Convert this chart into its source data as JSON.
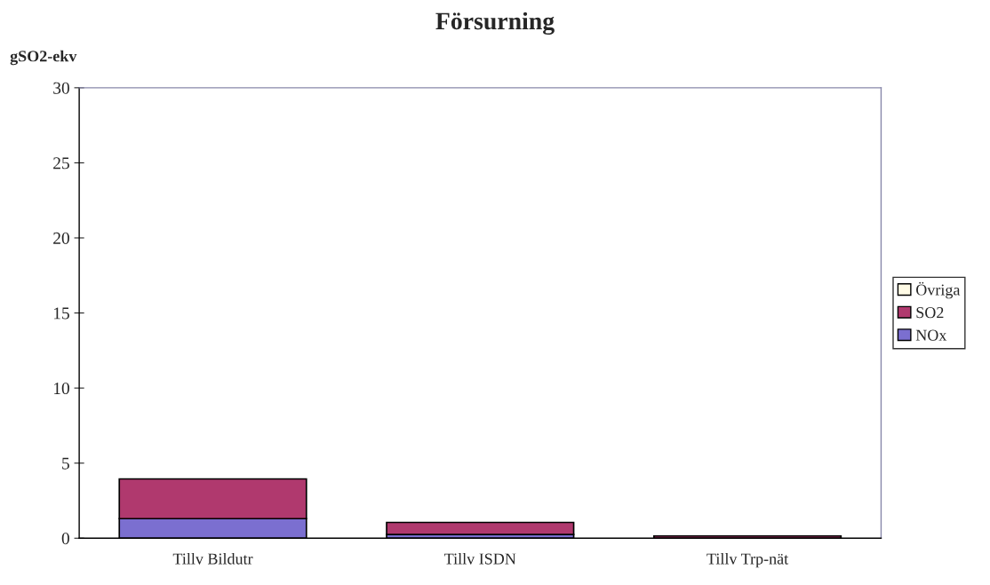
{
  "chart_data": {
    "type": "bar",
    "title": "Försurning",
    "ylabel": "gSO2-ekv",
    "stacked": true,
    "categories": [
      "Tillv Bildutr",
      "Tillv ISDN",
      "Tillv Trp-nät"
    ],
    "series": [
      {
        "name": "NOx",
        "color": "#7b6fd0",
        "values": [
          1.3,
          0.25,
          null
        ]
      },
      {
        "name": "SO2",
        "color": "#b0396e",
        "values": [
          2.65,
          0.8,
          0.15
        ]
      },
      {
        "name": "Övriga",
        "color": "#fffbe6",
        "values": [
          null,
          null,
          null
        ]
      }
    ],
    "ylim": [
      0,
      30
    ],
    "yticks": [
      0,
      5,
      10,
      15,
      20,
      25,
      30
    ],
    "grid": false,
    "legend": "right"
  }
}
